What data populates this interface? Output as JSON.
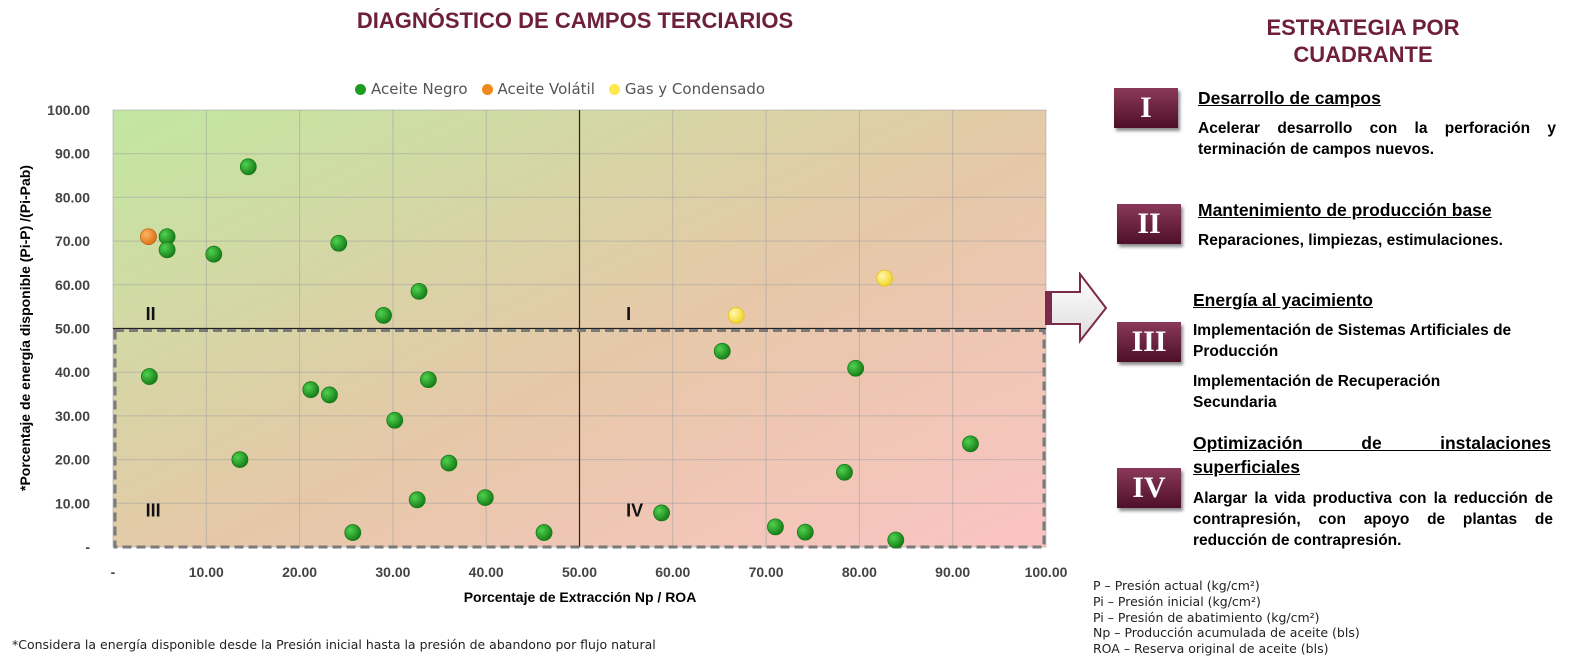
{
  "chart_title": "DIAGNÓSTICO DE CAMPOS TERCIARIOS",
  "colors": {
    "accent": "#6e1f3c",
    "aceite_negro": "#1e9c1e",
    "aceite_volatil": "#ee8a1e",
    "gas_condensado": "#ffe84a"
  },
  "chart_data": {
    "type": "scatter",
    "xlabel": "Porcentaje de Extracción Np / ROA",
    "ylabel": "*Porcentaje de energía disponible (Pi-P) /(Pi-Pab)",
    "xlim": [
      0,
      100
    ],
    "ylim": [
      0,
      100
    ],
    "x_ticks": [
      "-",
      "10.00",
      "20.00",
      "30.00",
      "40.00",
      "50.00",
      "60.00",
      "70.00",
      "80.00",
      "90.00",
      "100.00"
    ],
    "y_ticks": [
      "-",
      "10.00",
      "20.00",
      "30.00",
      "40.00",
      "50.00",
      "60.00",
      "70.00",
      "80.00",
      "90.00",
      "100.00"
    ],
    "grid": true,
    "legend_position": "top",
    "quadrant_labels": [
      {
        "label": "I",
        "x": 55,
        "y": 52
      },
      {
        "label": "II",
        "x": 3.5,
        "y": 52
      },
      {
        "label": "III",
        "x": 3.5,
        "y": 7
      },
      {
        "label": "IV",
        "x": 55,
        "y": 7
      }
    ],
    "series": [
      {
        "name": "Aceite Negro",
        "color": "#1e9c1e",
        "points": [
          [
            14.5,
            87
          ],
          [
            5.8,
            71
          ],
          [
            5.8,
            68
          ],
          [
            10.8,
            67
          ],
          [
            24.2,
            69.5
          ],
          [
            32.8,
            58.5
          ],
          [
            29,
            53
          ],
          [
            3.9,
            39
          ],
          [
            21.2,
            36
          ],
          [
            23.2,
            34.8
          ],
          [
            33.8,
            38.3
          ],
          [
            30.2,
            29
          ],
          [
            13.6,
            20
          ],
          [
            36,
            19.2
          ],
          [
            32.6,
            10.8
          ],
          [
            39.9,
            11.3
          ],
          [
            25.7,
            3.3
          ],
          [
            46.2,
            3.3
          ],
          [
            58.8,
            7.8
          ],
          [
            65.3,
            44.8
          ],
          [
            79.6,
            40.9
          ],
          [
            91.9,
            23.6
          ],
          [
            78.4,
            17.1
          ],
          [
            71,
            4.6
          ],
          [
            74.2,
            3.4
          ],
          [
            83.9,
            1.6
          ]
        ]
      },
      {
        "name": "Aceite Volátil",
        "color": "#ee8a1e",
        "points": [
          [
            3.8,
            71
          ]
        ]
      },
      {
        "name": "Gas y Condensado",
        "color": "#ffe84a",
        "points": [
          [
            82.7,
            61.5
          ],
          [
            66.8,
            53
          ]
        ]
      }
    ]
  },
  "footnote": "*Considera la energía disponible desde la Presión inicial hasta la presión de abandono por flujo natural",
  "side": {
    "title_line1": "ESTRATEGIA POR",
    "title_line2": "CUADRANTE",
    "items": [
      {
        "numeral": "I",
        "title": "Desarrollo de campos",
        "text": "Acelerar desarrollo con la perforación y terminación de campos nuevos."
      },
      {
        "numeral": "II",
        "title": "Mantenimiento de producción base",
        "text": "Reparaciones, limpiezas, estimulaciones."
      },
      {
        "numeral": "III",
        "title": "Energía al yacimiento",
        "text1": "Implementación de Sistemas Artificiales de Producción",
        "text2": "Implementación de Recuperación Secundaria"
      },
      {
        "numeral": "IV",
        "title_line1": "Optimización de instalaciones",
        "title_line2": "superficiales",
        "text": "Alargar la vida productiva con la reducción de contrapresión, con apoyo de plantas de reducción de contrapresión."
      }
    ]
  },
  "notes": [
    "P – Presión actual (kg/cm²)",
    "Pi – Presión inicial (kg/cm²)",
    "Pi – Presión de abatimiento (kg/cm²)",
    "Np – Producción acumulada de aceite (bls)",
    "ROA – Reserva original de aceite (bls)"
  ]
}
